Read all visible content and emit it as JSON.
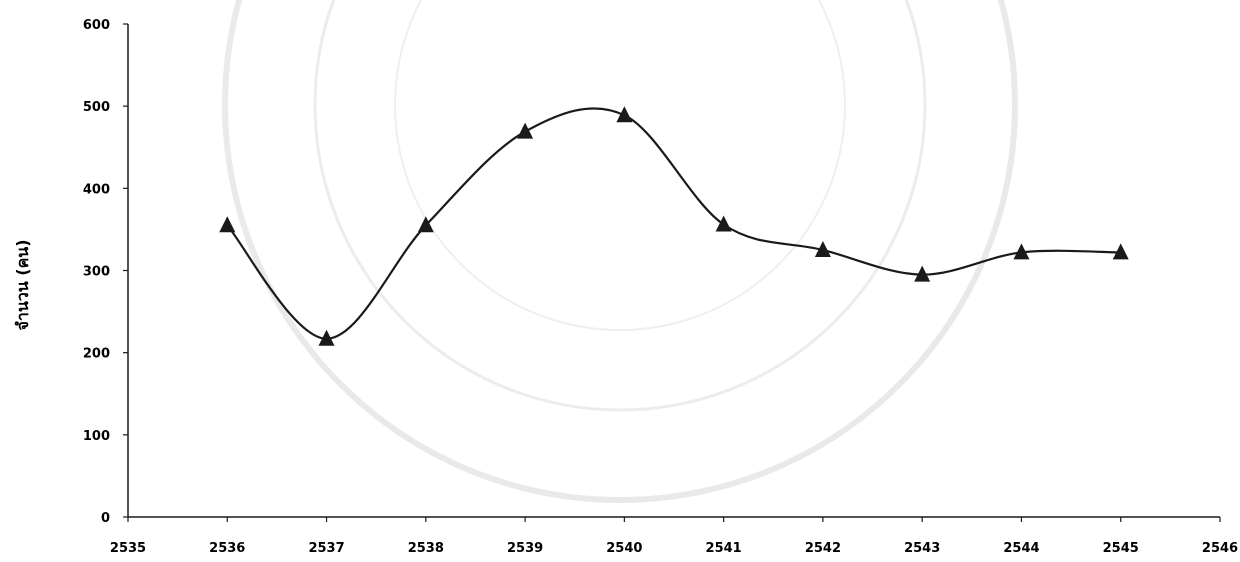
{
  "chart_data": {
    "type": "line",
    "title": "",
    "xlabel": "",
    "ylabel": "จำนวน (คน)",
    "xlim": [
      2535,
      2546
    ],
    "ylim": [
      0,
      600
    ],
    "x_ticks": [
      2535,
      2536,
      2537,
      2538,
      2539,
      2540,
      2541,
      2542,
      2543,
      2544,
      2545,
      2546
    ],
    "y_ticks": [
      0,
      100,
      200,
      300,
      400,
      500,
      600
    ],
    "grid": false,
    "smoothed": true,
    "marker": "triangle",
    "line_color": "#1a1a1a",
    "series": [
      {
        "x": [
          2536,
          2537,
          2538,
          2539,
          2540,
          2541,
          2542,
          2543,
          2544,
          2545
        ],
        "values": [
          355,
          217,
          355,
          469,
          489,
          356,
          325,
          295,
          322,
          322
        ]
      }
    ]
  }
}
